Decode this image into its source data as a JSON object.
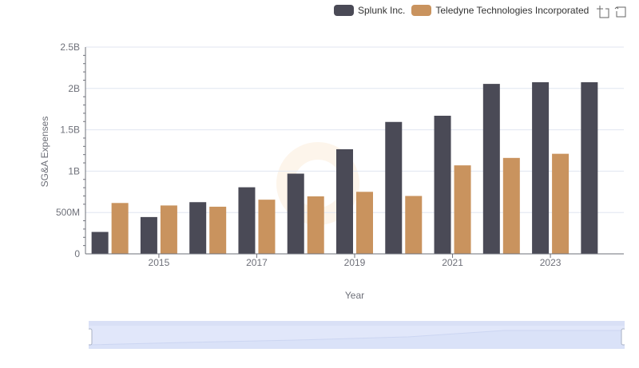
{
  "chart_data": {
    "type": "bar",
    "title": "",
    "xlabel": "Year",
    "ylabel": "SG&A Expenses",
    "ylim": [
      0,
      2500000000
    ],
    "y_tick_labels": [
      "0",
      "500M",
      "1B",
      "1.5B",
      "2B",
      "2.5B"
    ],
    "x_tick_labels": [
      "2015",
      "2017",
      "2019",
      "2021",
      "2023"
    ],
    "categories": [
      "2014",
      "2015",
      "2016",
      "2017",
      "2018",
      "2019",
      "2020",
      "2021",
      "2022",
      "2023",
      "2024"
    ],
    "series": [
      {
        "name": "Splunk Inc.",
        "color": "#4a4a56",
        "values": [
          265000000,
          445000000,
          625000000,
          805000000,
          970000000,
          1265000000,
          1595000000,
          1670000000,
          2055000000,
          2075000000,
          2075000000
        ]
      },
      {
        "name": "Teledyne Technologies Incorporated",
        "color": "#c9935e",
        "values": [
          615000000,
          585000000,
          570000000,
          655000000,
          695000000,
          750000000,
          700000000,
          1070000000,
          1160000000,
          1210000000,
          null
        ]
      }
    ],
    "grid": true,
    "legend_position": "top-right"
  },
  "toolbox": {
    "zoom_icon": "zoom-icon",
    "reset_icon": "restore-icon"
  },
  "datazoom": {
    "handle_icon": "slider-handle-icon"
  }
}
